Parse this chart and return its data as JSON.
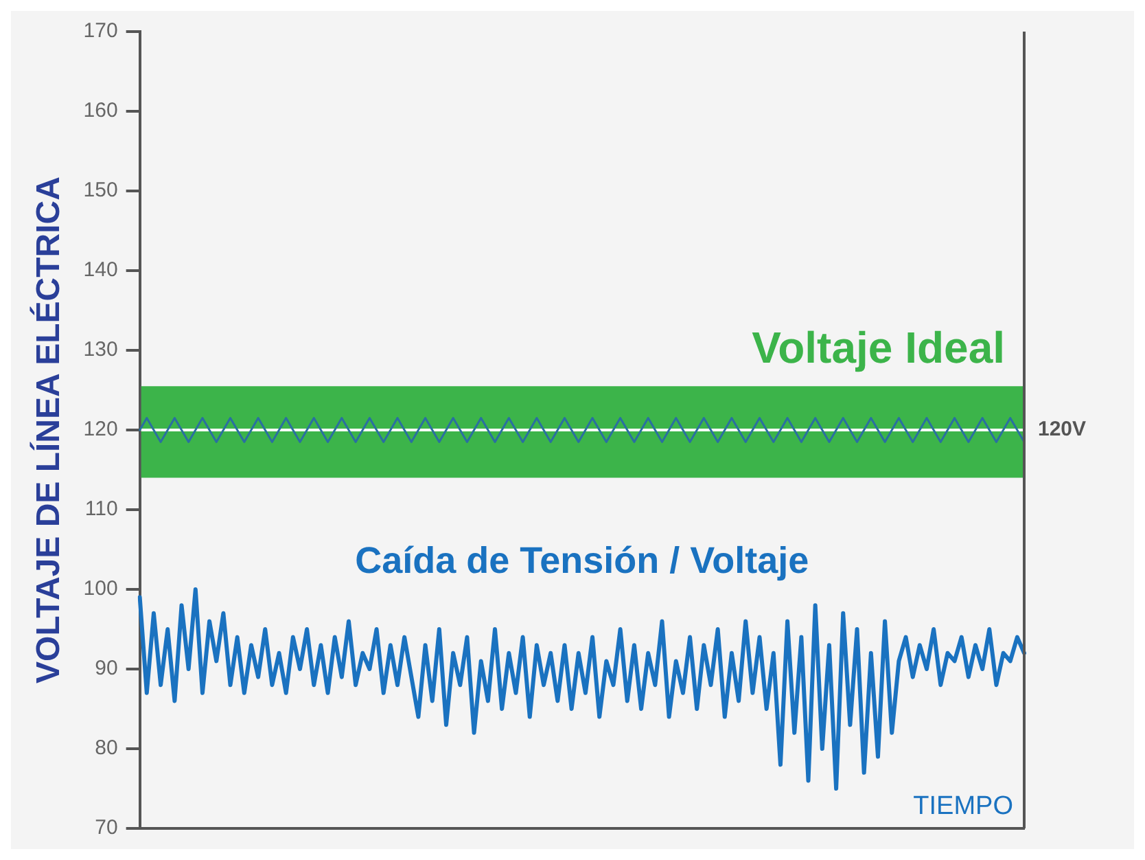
{
  "chart_data": {
    "type": "line",
    "ylabel": "VOLTAJE DE LÍNEA ELÉCTRICA",
    "xlabel": "TIEMPO",
    "categories": [
      null,
      null,
      null,
      null,
      null,
      null,
      null,
      null,
      null,
      null,
      null,
      null,
      null,
      null,
      null,
      null,
      null,
      null,
      null,
      null,
      null,
      null,
      null,
      null,
      null,
      null,
      null,
      null,
      null,
      null,
      null,
      null,
      null,
      null,
      null,
      null,
      null,
      null,
      null,
      null,
      null,
      null,
      null,
      null,
      null,
      null,
      null,
      null,
      null,
      null,
      null,
      null,
      null,
      null,
      null,
      null,
      null,
      null,
      null,
      null,
      null,
      null,
      null,
      null,
      null,
      null,
      null,
      null,
      null,
      null,
      null,
      null,
      null,
      null,
      null,
      null,
      null,
      null,
      null,
      null,
      null,
      null,
      null,
      null,
      null,
      null,
      null,
      null,
      null,
      null,
      null,
      null,
      null,
      null,
      null,
      null,
      null,
      null,
      null,
      null,
      null,
      null,
      null,
      null,
      null,
      null,
      null,
      null,
      null,
      null,
      null,
      null,
      null,
      null,
      null,
      null,
      null,
      null,
      null,
      null,
      null,
      null,
      null,
      null,
      null,
      null,
      null,
      null
    ],
    "series": [
      {
        "color": "#2a6fa0",
        "values": [
          120,
          121.5,
          120,
          118.5,
          120,
          121.5,
          120,
          118.5,
          120,
          121.5,
          120,
          118.5,
          120,
          121.5,
          120,
          118.5,
          120,
          121.5,
          120,
          118.5,
          120,
          121.5,
          120,
          118.5,
          120,
          121.5,
          120,
          118.5,
          120,
          121.5,
          120,
          118.5,
          120,
          121.5,
          120,
          118.5,
          120,
          121.5,
          120,
          118.5,
          120,
          121.5,
          120,
          118.5,
          120,
          121.5,
          120,
          118.5,
          120,
          121.5,
          120,
          118.5,
          120,
          121.5,
          120,
          118.5,
          120,
          121.5,
          120,
          118.5,
          120,
          121.5,
          120,
          118.5,
          120,
          121.5,
          120,
          118.5,
          120,
          121.5,
          120,
          118.5,
          120,
          121.5,
          120,
          118.5,
          120,
          121.5,
          120,
          118.5,
          120,
          121.5,
          120,
          118.5,
          120,
          121.5,
          120,
          118.5,
          120,
          121.5,
          120,
          118.5,
          120,
          121.5,
          120,
          118.5,
          120,
          121.5,
          120,
          118.5,
          120,
          121.5,
          120,
          118.5,
          120,
          121.5,
          120,
          118.5,
          120,
          121.5,
          120,
          118.5,
          120,
          121.5,
          120,
          118.5,
          120,
          121.5,
          120,
          118.5,
          120,
          121.5,
          120,
          118.5,
          120,
          121.5,
          120,
          118.5
        ]
      },
      {
        "name": "Caída de Tensión / Voltaje",
        "color": "#1a72c0",
        "values": [
          99,
          87,
          97,
          88,
          95,
          86,
          98,
          90,
          100,
          87,
          96,
          91,
          97,
          88,
          94,
          87,
          93,
          89,
          95,
          88,
          92,
          87,
          94,
          90,
          95,
          88,
          93,
          87,
          94,
          89,
          96,
          88,
          92,
          90,
          95,
          87,
          93,
          88,
          94,
          89,
          84,
          93,
          86,
          95,
          83,
          92,
          88,
          94,
          82,
          91,
          86,
          95,
          85,
          92,
          87,
          94,
          84,
          93,
          88,
          92,
          86,
          93,
          85,
          92,
          87,
          94,
          84,
          91,
          88,
          95,
          86,
          93,
          85,
          92,
          88,
          96,
          84,
          91,
          87,
          94,
          85,
          93,
          88,
          95,
          84,
          92,
          86,
          96,
          87,
          94,
          85,
          92,
          78,
          96,
          82,
          94,
          76,
          98,
          80,
          93,
          75,
          97,
          83,
          95,
          77,
          92,
          79,
          96,
          82,
          91,
          94,
          89,
          93,
          90,
          95,
          88,
          92,
          91,
          94,
          89,
          93,
          90,
          95,
          88,
          92,
          91,
          94,
          92
        ]
      }
    ],
    "ylim": [
      70,
      170
    ],
    "yticks": [
      70,
      80,
      90,
      100,
      110,
      120,
      130,
      140,
      150,
      160,
      170
    ],
    "tick_labels": "y",
    "grid": false,
    "legend": false,
    "marker": "none",
    "line_style": "solid",
    "bands": [
      {
        "axis": "y",
        "from": 114,
        "to": 125.5,
        "label": "Voltaje Ideal",
        "color": "#3cb44a"
      }
    ],
    "ref_lines": [
      {
        "axis": "y",
        "value": 120,
        "label": "120V",
        "color": "#ffffff"
      }
    ]
  }
}
